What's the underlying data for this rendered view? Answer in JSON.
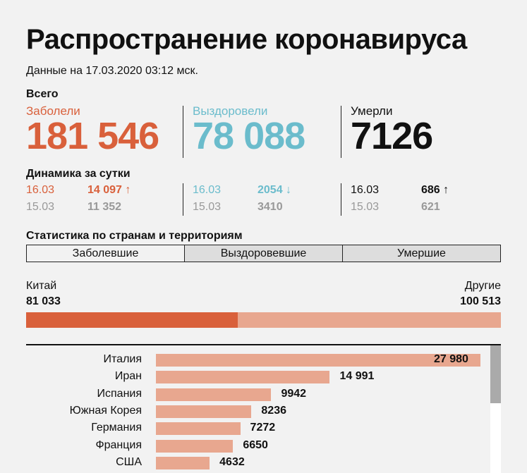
{
  "title": "Распространение коронавируса",
  "subtitle": "Данные на 17.03.2020 03:12 мск.",
  "totals": {
    "heading": "Всего",
    "infected": {
      "label": "Заболели",
      "value": "181 546"
    },
    "recovered": {
      "label": "Выздоровели",
      "value": "78 088"
    },
    "died": {
      "label": "Умерли",
      "value": "7126"
    }
  },
  "daily": {
    "heading": "Динамика за сутки",
    "infected": {
      "d1": "16.03",
      "v1": "14 097",
      "d2": "15.03",
      "v2": "11 352",
      "trend": "up"
    },
    "recovered": {
      "d1": "16.03",
      "v1": "2054",
      "d2": "15.03",
      "v2": "3410",
      "trend": "down"
    },
    "died": {
      "d1": "16.03",
      "v1": "686",
      "d2": "15.03",
      "v2": "621",
      "trend": "up"
    }
  },
  "countries": {
    "heading": "Статистика по странам и территориям",
    "tabs": [
      "Заболевшие",
      "Выздоровевшие",
      "Умершие"
    ],
    "active_tab": 0,
    "split": {
      "left_label": "Китай",
      "left_value": "81 033",
      "right_label": "Другие",
      "right_value": "100 513",
      "left_num": 81033,
      "right_num": 100513
    }
  },
  "chart_data": {
    "type": "bar",
    "categories": [
      "Италия",
      "Иран",
      "Испания",
      "Южная Корея",
      "Германия",
      "Франция",
      "США"
    ],
    "values": [
      27980,
      14991,
      9942,
      8236,
      7272,
      6650,
      4632
    ],
    "labels": [
      "27 980",
      "14 991",
      "9942",
      "8236",
      "7272",
      "6650",
      "4632"
    ]
  },
  "colors": {
    "infected": "#d9603b",
    "recovered": "#6bbccc",
    "died": "#111111",
    "bar_light": "#e8a78f"
  }
}
